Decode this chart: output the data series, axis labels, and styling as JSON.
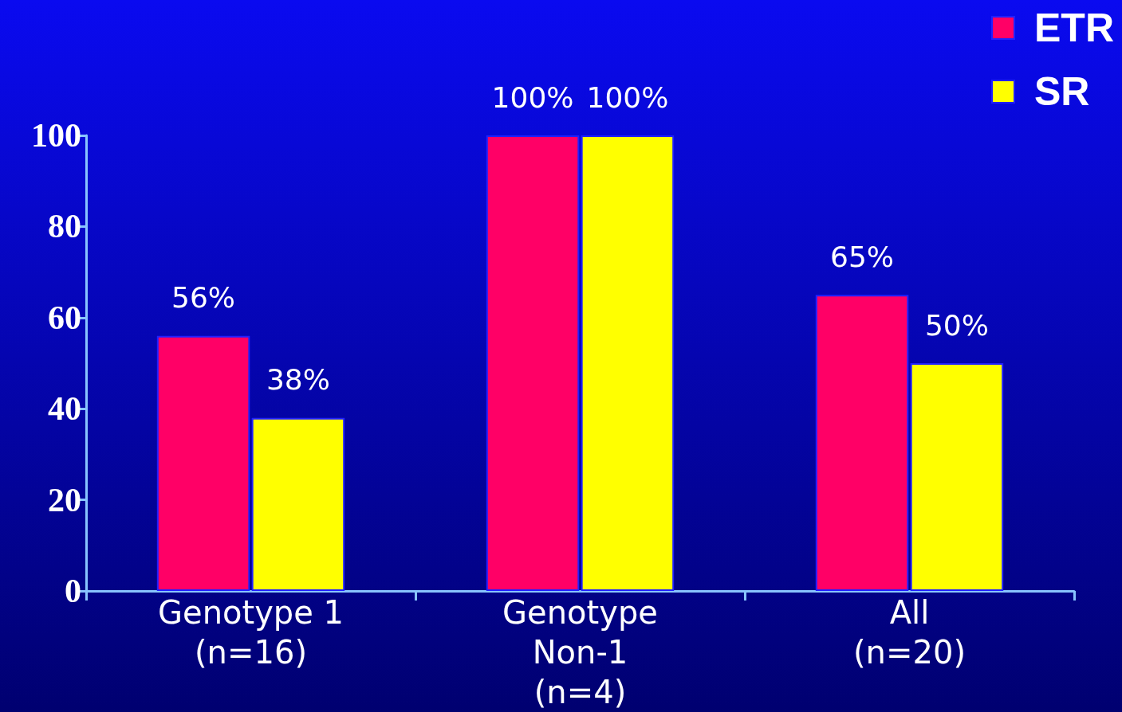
{
  "chart_data": {
    "type": "bar",
    "categories": [
      "Genotype 1\n(n=16)",
      "Genotype\nNon-1\n(n=4)",
      "All\n(n=20)"
    ],
    "series": [
      {
        "name": "ETR",
        "color": "#ff0066",
        "values": [
          56,
          100,
          65
        ],
        "value_labels": [
          "56%",
          "100%",
          "65%"
        ]
      },
      {
        "name": "SR",
        "color": "#ffff00",
        "values": [
          38,
          100,
          50
        ],
        "value_labels": [
          "38%",
          "100%",
          "50%"
        ]
      }
    ],
    "ylim": [
      0,
      100
    ],
    "yticks": [
      0,
      20,
      40,
      60,
      80,
      100
    ],
    "grid": false,
    "legend": "top right"
  }
}
